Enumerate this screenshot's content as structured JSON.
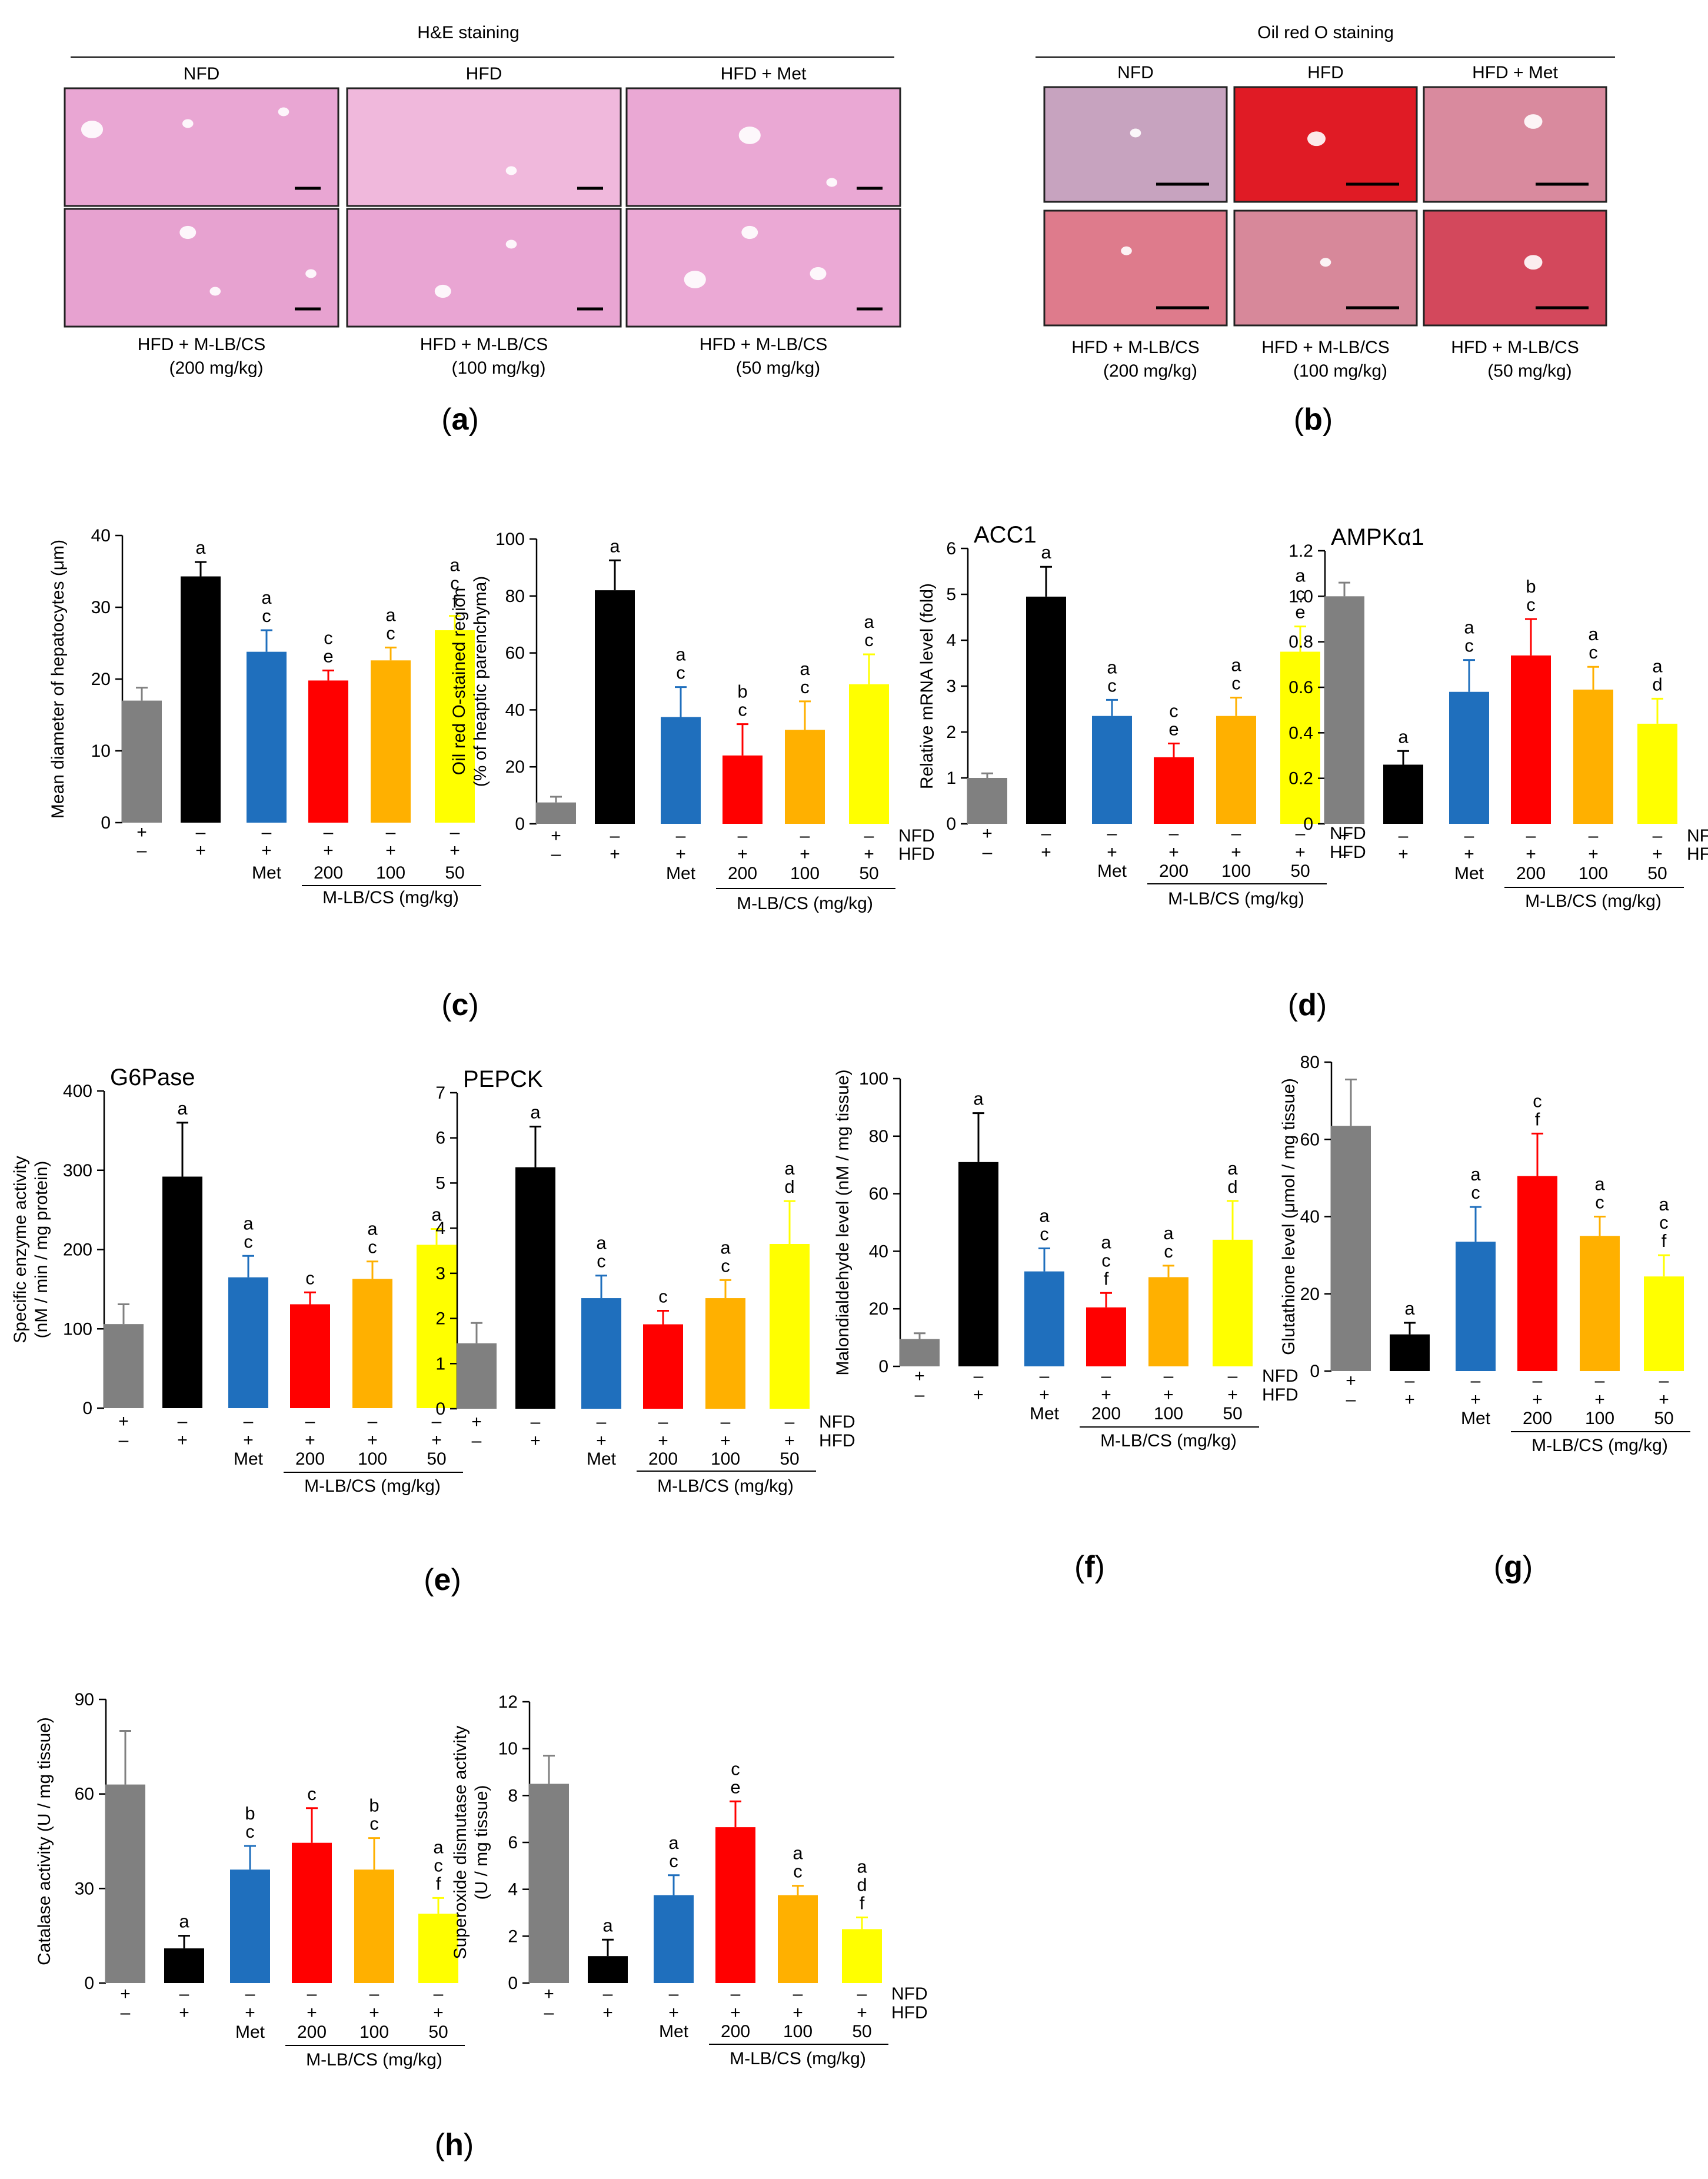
{
  "panel_labels": {
    "a": "a",
    "b": "b",
    "c": "c",
    "d": "d",
    "e": "e",
    "f": "f",
    "g": "g",
    "h": "h"
  },
  "colors": {
    "series": [
      "#808080",
      "#000000",
      "#1f6fbd",
      "#ff0000",
      "#ffb000",
      "#ffff00"
    ]
  },
  "common": {
    "nfd_label": "NFD",
    "hfd_label": "HFD",
    "row_nfd": [
      "+",
      "–",
      "–",
      "–",
      "–",
      "–"
    ],
    "row_hfd": [
      "–",
      "+",
      "+",
      "+",
      "+",
      "+"
    ],
    "row_treat": [
      "",
      "",
      "Met",
      "200",
      "100",
      "50"
    ],
    "group_label": "M-LB/CS (mg/kg)"
  },
  "images": [
    {
      "title": "H&E staining",
      "col_labels": [
        "NFD",
        "HFD",
        "HFD + Met"
      ],
      "bottom_labels": [
        [
          "HFD + M-LB/CS",
          "(200 mg/kg)"
        ],
        [
          "HFD + M-LB/CS",
          "(100 mg/kg)"
        ],
        [
          "HFD + M-LB/CS",
          "(50 mg/kg)"
        ]
      ],
      "tissue": [
        "#e9a6d3",
        "#f0b8dc",
        "#eaa8d4",
        "#e7a2d0",
        "#e9a5d3",
        "#eba9d5"
      ],
      "panel": "a"
    },
    {
      "title": "Oil red O staining",
      "col_labels": [
        "NFD",
        "HFD",
        "HFD + Met"
      ],
      "bottom_labels": [
        [
          "HFD + M-LB/CS",
          "(200 mg/kg)"
        ],
        [
          "HFD + M-LB/CS",
          "(100 mg/kg)"
        ],
        [
          "HFD + M-LB/CS",
          "(50 mg/kg)"
        ]
      ],
      "tissue": [
        "#c7a3bf",
        "#e01b25",
        "#d98a9e",
        "#de7b8c",
        "#d7889a",
        "#d3485c"
      ],
      "panel": "b"
    }
  ],
  "chart_data": [
    {
      "id": "c1",
      "type": "bar",
      "title": "",
      "ylabel": "Mean diameter of hepatocytes (μm)",
      "ylim": [
        0,
        40
      ],
      "yticks": [
        "0",
        "10",
        "20",
        "30",
        "40"
      ],
      "values": [
        17,
        34.3,
        23.8,
        19.8,
        22.6,
        26.8
      ],
      "errors": [
        1.8,
        2,
        3,
        1.4,
        1.8,
        2
      ],
      "annotations": [
        "",
        "a",
        "a c",
        "c e",
        "a c",
        "a c f"
      ],
      "row_labels": false
    },
    {
      "id": "c2",
      "type": "bar",
      "title": "",
      "ylabel": "Oil red O-stained region",
      "ylabel2": "(% of heaptic parenchyma)",
      "ylim": [
        0,
        100
      ],
      "yticks": [
        "0",
        "20",
        "40",
        "60",
        "80",
        "100"
      ],
      "values": [
        7.5,
        82,
        37.5,
        24,
        33,
        49
      ],
      "errors": [
        2,
        10.5,
        10.5,
        11,
        10,
        10.5
      ],
      "annotations": [
        "",
        "a",
        "a c",
        "b c",
        "a c",
        "a c"
      ],
      "row_labels": true
    },
    {
      "id": "d1",
      "type": "bar",
      "title": "ACC1",
      "ylabel": "Relative mRNA level (fold)",
      "ylim": [
        0,
        6
      ],
      "yticks": [
        "0",
        "1",
        "2",
        "3",
        "4",
        "5",
        "6"
      ],
      "values": [
        1,
        4.95,
        2.35,
        1.45,
        2.35,
        3.75
      ],
      "errors": [
        0.1,
        0.65,
        0.35,
        0.3,
        0.4,
        0.55
      ],
      "annotations": [
        "",
        "a",
        "a c",
        "c e",
        "a c",
        "a c e"
      ],
      "row_labels": true
    },
    {
      "id": "d2",
      "type": "bar",
      "title": "AMPKα1",
      "ylabel": "",
      "ylim": [
        0,
        1.2
      ],
      "yticks": [
        "0",
        "0.2",
        "0.4",
        "0.6",
        "0.8",
        "1.0",
        "1.2"
      ],
      "values": [
        1,
        0.26,
        0.58,
        0.74,
        0.59,
        0.44
      ],
      "errors": [
        0.06,
        0.06,
        0.14,
        0.16,
        0.1,
        0.11
      ],
      "annotations": [
        "",
        "a",
        "a c",
        "b c",
        "a c",
        "a d"
      ],
      "row_labels": true
    },
    {
      "id": "e1",
      "type": "bar",
      "title": "G6Pase",
      "ylabel": "Specific enzyme activity",
      "ylabel2": "(nM / min / mg protein)",
      "ylim": [
        0,
        400
      ],
      "yticks": [
        "0",
        "100",
        "200",
        "300",
        "400"
      ],
      "values": [
        106,
        292,
        165,
        131,
        163,
        206
      ],
      "errors": [
        25,
        68,
        27,
        15,
        22,
        20
      ],
      "annotations": [
        "",
        "a",
        "a c",
        "c",
        "a c",
        "a"
      ],
      "row_labels": false
    },
    {
      "id": "e2",
      "type": "bar",
      "title": "PEPCK",
      "ylabel": "",
      "ylim": [
        0,
        7
      ],
      "yticks": [
        "0",
        "1",
        "2",
        "3",
        "4",
        "5",
        "6",
        "7"
      ],
      "values": [
        1.45,
        5.35,
        2.45,
        1.87,
        2.45,
        3.65
      ],
      "errors": [
        0.45,
        0.9,
        0.5,
        0.3,
        0.4,
        0.95
      ],
      "annotations": [
        "",
        "a",
        "a c",
        "c",
        "a c",
        "a d"
      ],
      "row_labels": true
    },
    {
      "id": "f1",
      "type": "bar",
      "title": "",
      "ylabel": "Malondialdehyde level (nM / mg tissue)",
      "ylim": [
        0,
        100
      ],
      "yticks": [
        "0",
        "20",
        "40",
        "60",
        "80",
        "100"
      ],
      "values": [
        9.5,
        71,
        33,
        20.5,
        31,
        44
      ],
      "errors": [
        2,
        17,
        8,
        5,
        4,
        13.5
      ],
      "annotations": [
        "",
        "a",
        "a c",
        "a c f",
        "a c",
        "a d"
      ],
      "row_labels": true
    },
    {
      "id": "g1",
      "type": "bar",
      "title": "",
      "ylabel": "Glutathione level (μmol / mg tissue)",
      "ylim": [
        0,
        80
      ],
      "yticks": [
        "0",
        "20",
        "40",
        "60",
        "80"
      ],
      "values": [
        63.5,
        9.5,
        33.5,
        50.5,
        35,
        24.5
      ],
      "errors": [
        12,
        3,
        9,
        11,
        5,
        5.5
      ],
      "annotations": [
        "",
        "a",
        "a c",
        "c f",
        "a c",
        "a c f"
      ],
      "row_labels": false
    },
    {
      "id": "h1",
      "type": "bar",
      "title": "",
      "ylabel": "Catalase activity (U / mg tissue)",
      "ylim": [
        0,
        90
      ],
      "yticks": [
        "0",
        "30",
        "60",
        "90"
      ],
      "values": [
        63,
        11,
        36,
        44.5,
        36,
        22
      ],
      "errors": [
        17,
        4,
        7.5,
        11,
        10,
        5
      ],
      "annotations": [
        "",
        "a",
        "b c",
        "c",
        "b c",
        "a c f"
      ],
      "row_labels": false
    },
    {
      "id": "h2",
      "type": "bar",
      "title": "",
      "ylabel": "Superoxide dismutase activity",
      "ylabel2": "(U / mg tissue)",
      "ylim": [
        0,
        12
      ],
      "yticks": [
        "0",
        "2",
        "4",
        "6",
        "8",
        "10",
        "12"
      ],
      "values": [
        8.5,
        1.15,
        3.75,
        6.65,
        3.75,
        2.3
      ],
      "errors": [
        1.2,
        0.7,
        0.85,
        1.1,
        0.4,
        0.5
      ],
      "annotations": [
        "",
        "a",
        "a c",
        "c e",
        "a c",
        "a d f"
      ],
      "row_labels": true
    }
  ]
}
